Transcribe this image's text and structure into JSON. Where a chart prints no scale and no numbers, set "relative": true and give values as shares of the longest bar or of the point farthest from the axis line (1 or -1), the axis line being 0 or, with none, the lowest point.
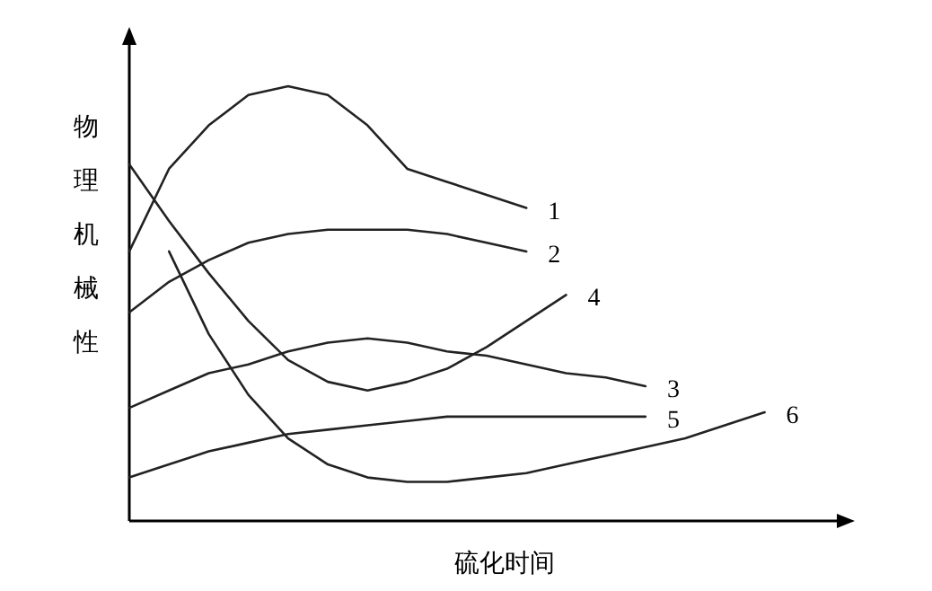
{
  "chart_data": {
    "type": "line",
    "relative": true,
    "xlabel": "硫化时间",
    "ylabel": "物理机械性",
    "categories": [
      null,
      null,
      null,
      null,
      null,
      null,
      null,
      null,
      null,
      null,
      null,
      null,
      null,
      null,
      null,
      null,
      null,
      null,
      null
    ],
    "series": [
      {
        "name": "1",
        "color": "#222222",
        "values": [
          0.62,
          0.81,
          0.91,
          0.98,
          1.0,
          0.98,
          0.91,
          0.81,
          0.78,
          0.75,
          0.72,
          null,
          null,
          null,
          null,
          null,
          null,
          null,
          null
        ]
      },
      {
        "name": "2",
        "color": "#222222",
        "values": [
          0.48,
          0.55,
          0.6,
          0.64,
          0.66,
          0.67,
          0.67,
          0.67,
          0.66,
          0.64,
          0.62,
          null,
          null,
          null,
          null,
          null,
          null,
          null,
          null
        ]
      },
      {
        "name": "3",
        "color": "#222222",
        "values": [
          0.26,
          0.3,
          0.34,
          0.36,
          0.39,
          0.41,
          0.42,
          0.41,
          0.39,
          0.38,
          0.36,
          0.34,
          0.33,
          0.31,
          null,
          null,
          null,
          null,
          null
        ]
      },
      {
        "name": "4",
        "color": "#222222",
        "values": [
          0.82,
          0.69,
          0.57,
          0.46,
          0.37,
          0.32,
          0.3,
          0.32,
          0.35,
          0.4,
          0.46,
          0.52,
          null,
          null,
          null,
          null,
          null,
          null,
          null
        ]
      },
      {
        "name": "5",
        "color": "#222222",
        "values": [
          0.1,
          0.13,
          0.16,
          0.18,
          0.2,
          0.21,
          0.22,
          0.23,
          0.24,
          0.24,
          0.24,
          0.24,
          0.24,
          0.24,
          null,
          null,
          null,
          null,
          null
        ]
      },
      {
        "name": "6",
        "color": "#222222",
        "values": [
          null,
          0.62,
          0.43,
          0.29,
          0.19,
          0.13,
          0.1,
          0.09,
          0.09,
          0.1,
          0.11,
          0.13,
          0.15,
          0.17,
          0.19,
          0.22,
          0.25,
          null,
          null
        ]
      }
    ]
  }
}
